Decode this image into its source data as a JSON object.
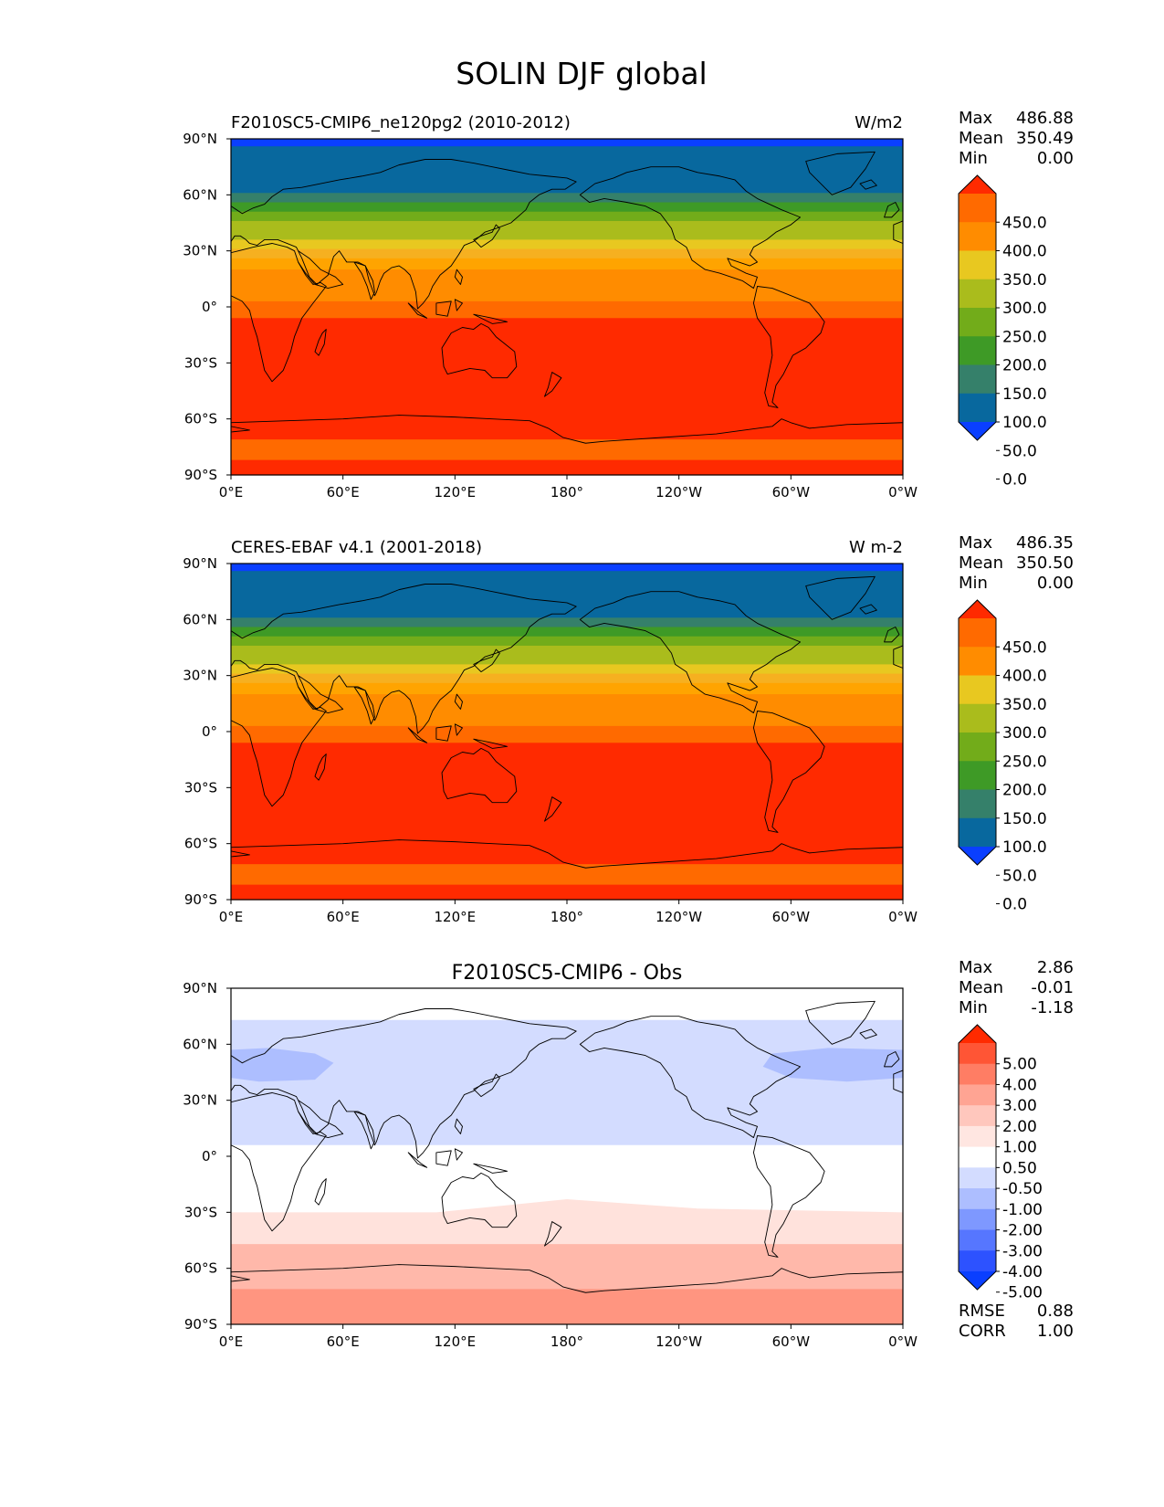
{
  "title": "SOLIN DJF global",
  "lon_ticks": [
    "0°E",
    "60°E",
    "120°E",
    "180°",
    "120°W",
    "60°W",
    "0°W"
  ],
  "lat_ticks": [
    "90°N",
    "60°N",
    "30°N",
    "0°",
    "30°S",
    "60°S",
    "90°S"
  ],
  "stat_labels": {
    "max": "Max",
    "mean": "Mean",
    "min": "Min",
    "rmse": "RMSE",
    "corr": "CORR"
  },
  "panels": [
    {
      "left_title": "F2010SC5-CMIP6_ne120pg2 (2010-2012)",
      "center_title": "",
      "units": "W/m2",
      "stats": {
        "max": "486.88",
        "mean": "350.49",
        "min": "0.00"
      },
      "colorbar": {
        "labels": [
          "450.0",
          "400.0",
          "350.0",
          "300.0",
          "250.0",
          "200.0",
          "150.0",
          "100.0",
          "50.0",
          "0.0"
        ],
        "colors": [
          "#ff2a00",
          "#ff6a00",
          "#ff8c00",
          "#e8c820",
          "#aabc1c",
          "#72ac1a",
          "#3e9a26",
          "#35806a",
          "#08689e",
          "#0a3fff"
        ]
      }
    },
    {
      "left_title": "CERES-EBAF v4.1 (2001-2018)",
      "center_title": "",
      "units": "W m-2",
      "stats": {
        "max": "486.35",
        "mean": "350.50",
        "min": "0.00"
      },
      "colorbar": {
        "labels": [
          "450.0",
          "400.0",
          "350.0",
          "300.0",
          "250.0",
          "200.0",
          "150.0",
          "100.0",
          "50.0",
          "0.0"
        ],
        "colors": [
          "#ff2a00",
          "#ff6a00",
          "#ff8c00",
          "#e8c820",
          "#aabc1c",
          "#72ac1a",
          "#3e9a26",
          "#35806a",
          "#08689e",
          "#0a3fff"
        ]
      }
    },
    {
      "left_title": "",
      "center_title": "F2010SC5-CMIP6 - Obs",
      "units": "",
      "stats": {
        "max": "2.86",
        "mean": "-0.01",
        "min": "-1.18"
      },
      "extra_stats": {
        "rmse": "0.88",
        "corr": "1.00"
      },
      "colorbar": {
        "labels": [
          "5.00",
          "4.00",
          "3.00",
          "2.00",
          "1.00",
          "0.50",
          "-0.50",
          "-1.00",
          "-2.00",
          "-3.00",
          "-4.00",
          "-5.00"
        ],
        "colors": [
          "#ff2a00",
          "#ff5535",
          "#ff7d64",
          "#ffa493",
          "#ffc7bd",
          "#ffe6e1",
          "#ffffff",
          "#d3dcff",
          "#adbeff",
          "#7e98ff",
          "#5676ff",
          "#2d52ff",
          "#0a3fff"
        ]
      }
    }
  ],
  "chart_data": [
    {
      "type": "heatmap",
      "title": "F2010SC5-CMIP6_ne120pg2 (2010-2012)",
      "units": "W/m2",
      "xlim": [
        0,
        360
      ],
      "ylim": [
        -90,
        90
      ],
      "lat_band_edges": [
        90,
        86,
        75,
        61,
        56,
        51,
        46,
        41,
        36,
        31,
        26,
        20,
        14,
        3,
        -6,
        -41,
        -52,
        -71,
        -82,
        -90
      ],
      "lat_band_values": [
        0,
        25,
        75,
        125,
        175,
        225,
        275,
        325,
        375,
        425,
        475,
        475,
        475,
        475,
        475,
        475,
        475,
        475,
        475
      ],
      "lat_band_colors": [
        "#0a3fff",
        "#08689e",
        "#35806a",
        "#3e9a26",
        "#72ac1a",
        "#aabc1c",
        "#e8c820",
        "#ff8c00",
        "#ff6a00",
        "#ff2a00",
        "#ff6a00",
        "#ff2a00"
      ],
      "max": 486.88,
      "mean": 350.49,
      "min": 0.0
    },
    {
      "type": "heatmap",
      "title": "CERES-EBAF v4.1 (2001-2018)",
      "units": "W m-2",
      "xlim": [
        0,
        360
      ],
      "ylim": [
        -90,
        90
      ],
      "max": 486.35,
      "mean": 350.5,
      "min": 0.0
    },
    {
      "type": "heatmap",
      "title": "F2010SC5-CMIP6 - Obs",
      "xlim": [
        0,
        360
      ],
      "ylim": [
        -90,
        90
      ],
      "max": 2.86,
      "mean": -0.01,
      "min": -1.18,
      "rmse": 0.88,
      "corr": 1.0
    }
  ]
}
